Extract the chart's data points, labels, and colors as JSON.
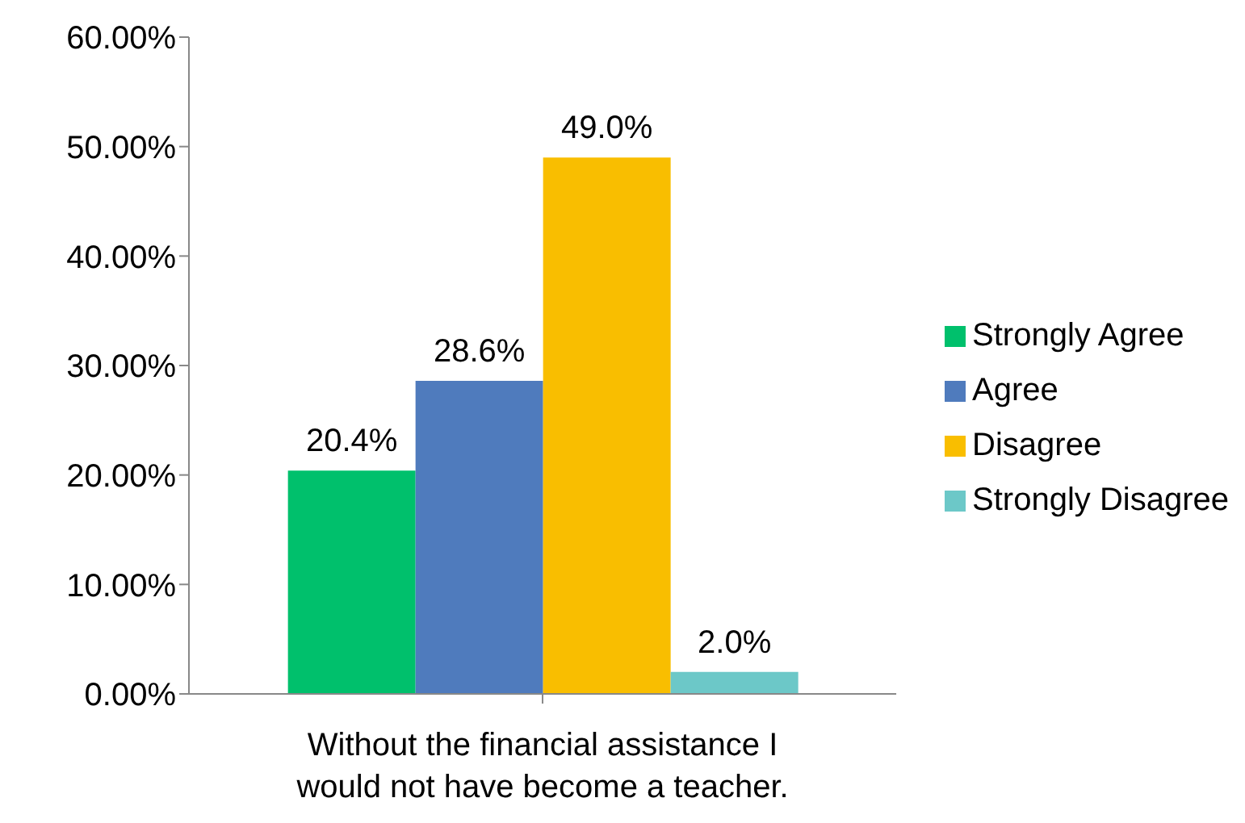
{
  "chart_data": {
    "type": "bar",
    "categories": [
      "Without the financial assistance I would not have become a teacher."
    ],
    "series": [
      {
        "name": "Strongly Agree",
        "color": "#00c06c",
        "values": [
          20.4
        ],
        "value_labels": [
          "20.4%"
        ]
      },
      {
        "name": "Agree",
        "color": "#4f7bbd",
        "values": [
          28.6
        ],
        "value_labels": [
          "28.6%"
        ]
      },
      {
        "name": "Disagree",
        "color": "#f9be00",
        "values": [
          49.0
        ],
        "value_labels": [
          "49.0%"
        ]
      },
      {
        "name": "Strongly Disagree",
        "color": "#6cc8c8",
        "values": [
          2.0
        ],
        "value_labels": [
          "2.0%"
        ]
      }
    ],
    "ylim": [
      0,
      60
    ],
    "yticks": [
      {
        "value": 0,
        "label": "0.00%"
      },
      {
        "value": 10,
        "label": "10.00%"
      },
      {
        "value": 20,
        "label": "20.00%"
      },
      {
        "value": 30,
        "label": "30.00%"
      },
      {
        "value": 40,
        "label": "40.00%"
      },
      {
        "value": 50,
        "label": "50.00%"
      },
      {
        "value": 60,
        "label": "60.00%"
      }
    ],
    "grid": false,
    "legend": "right"
  }
}
